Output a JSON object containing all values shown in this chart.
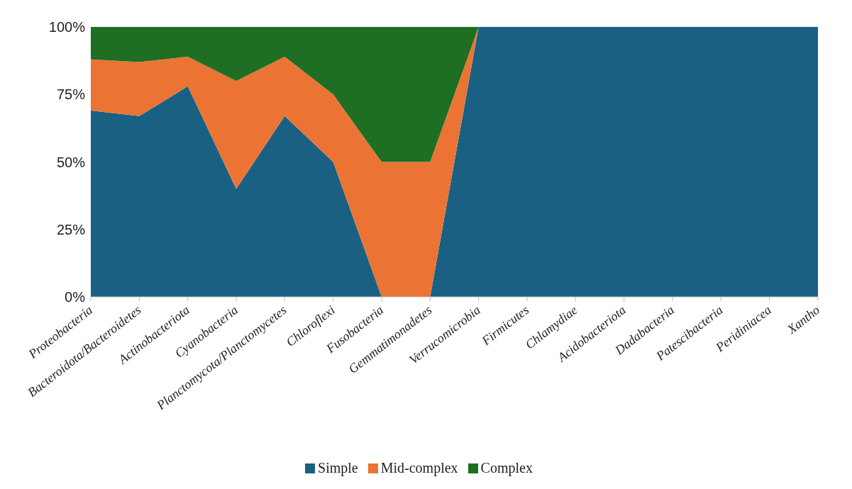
{
  "chart_data": {
    "type": "area",
    "stacked": true,
    "categories": [
      "Proteobacteria",
      "Bacteroidota/Bacteroidetes",
      "Actinobacteriota",
      "Cyanobacteria",
      "Planctomycota/Planctomycetes",
      "Chloroflexi",
      "Fusobacteria",
      "Gemmatimonadetes",
      "Verrucomicrobia",
      "Firmicutes",
      "Chlamydiae",
      "Acidobacteriota",
      "Dadabacteria",
      "Patescibacteria",
      "Peridiniacea",
      "Xantho"
    ],
    "series": [
      {
        "name": "Simple",
        "color": "#1a6083",
        "values": [
          69,
          67,
          78,
          40,
          67,
          50,
          0,
          0,
          100,
          100,
          100,
          100,
          100,
          100,
          100,
          100
        ]
      },
      {
        "name": "Mid-complex",
        "color": "#eb7434",
        "values": [
          19,
          20,
          11,
          40,
          22,
          25,
          50,
          50,
          0,
          null,
          null,
          null,
          null,
          null,
          null,
          null
        ]
      },
      {
        "name": "Complex",
        "color": "#1e6e24",
        "values": [
          12,
          13,
          11,
          20,
          11,
          25,
          50,
          50,
          0,
          null,
          null,
          null,
          null,
          null,
          null,
          null
        ]
      }
    ],
    "ylim": [
      0,
      100
    ],
    "yticks": [
      {
        "value": 0,
        "label": "0%"
      },
      {
        "value": 25,
        "label": "25%"
      },
      {
        "value": 50,
        "label": "50%"
      },
      {
        "value": 75,
        "label": "75%"
      },
      {
        "value": 100,
        "label": "100%"
      }
    ],
    "grid": false,
    "legend": "bottom"
  }
}
